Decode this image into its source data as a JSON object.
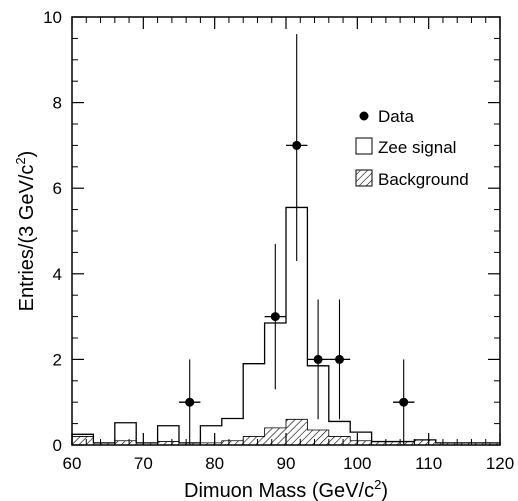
{
  "chart_data": {
    "type": "histogram",
    "xlabel": "Dimuon Mass    (GeV/c",
    "xlabel_sup": "2",
    "xlabel_end": ")",
    "ylabel": "Entries/(3 GeV/c",
    "ylabel_sup": "2",
    "ylabel_end": ")",
    "xlim": [
      60,
      120
    ],
    "ylim": [
      0,
      10
    ],
    "xticks": [
      60,
      70,
      80,
      90,
      100,
      110,
      120
    ],
    "yticks": [
      0,
      2,
      4,
      6,
      8,
      10
    ],
    "grid": false,
    "legend_position": "right",
    "legend": [
      {
        "label": "Data",
        "marker": "filled-circle"
      },
      {
        "label": "Zee signal",
        "marker": "open-box"
      },
      {
        "label": "Background",
        "marker": "hatched-box"
      }
    ],
    "bin_edges": [
      60,
      63,
      66,
      69,
      72,
      75,
      78,
      81,
      84,
      87,
      90,
      93,
      96,
      99,
      102,
      105,
      108,
      111,
      114,
      117,
      120
    ],
    "signal": [
      0.25,
      0.05,
      0.52,
      0.05,
      0.45,
      0.05,
      0.45,
      0.62,
      1.9,
      2.85,
      5.55,
      1.85,
      0.55,
      0.3,
      0.08,
      0.08,
      0.12,
      0.05,
      0.05,
      0.05
    ],
    "background": [
      0.2,
      0.05,
      0.1,
      0.05,
      0.08,
      0.05,
      0.05,
      0.1,
      0.2,
      0.4,
      0.6,
      0.35,
      0.2,
      0.1,
      0.08,
      0.08,
      0.12,
      0.05,
      0.05,
      0.05
    ],
    "data_points": [
      {
        "x": 76.5,
        "y": 1,
        "ylow": 0,
        "yhigh": 2.0,
        "xerr": 1.5
      },
      {
        "x": 88.5,
        "y": 3,
        "ylow": 1.3,
        "yhigh": 4.7,
        "xerr": 1.5
      },
      {
        "x": 91.5,
        "y": 7,
        "ylow": 4.3,
        "yhigh": 9.6,
        "xerr": 1.5
      },
      {
        "x": 94.5,
        "y": 2,
        "ylow": 0.6,
        "yhigh": 3.4,
        "xerr": 1.5
      },
      {
        "x": 97.5,
        "y": 2,
        "ylow": 0.6,
        "yhigh": 3.4,
        "xerr": 1.5
      },
      {
        "x": 106.5,
        "y": 1,
        "ylow": 0,
        "yhigh": 2.0,
        "xerr": 1.5
      }
    ]
  }
}
